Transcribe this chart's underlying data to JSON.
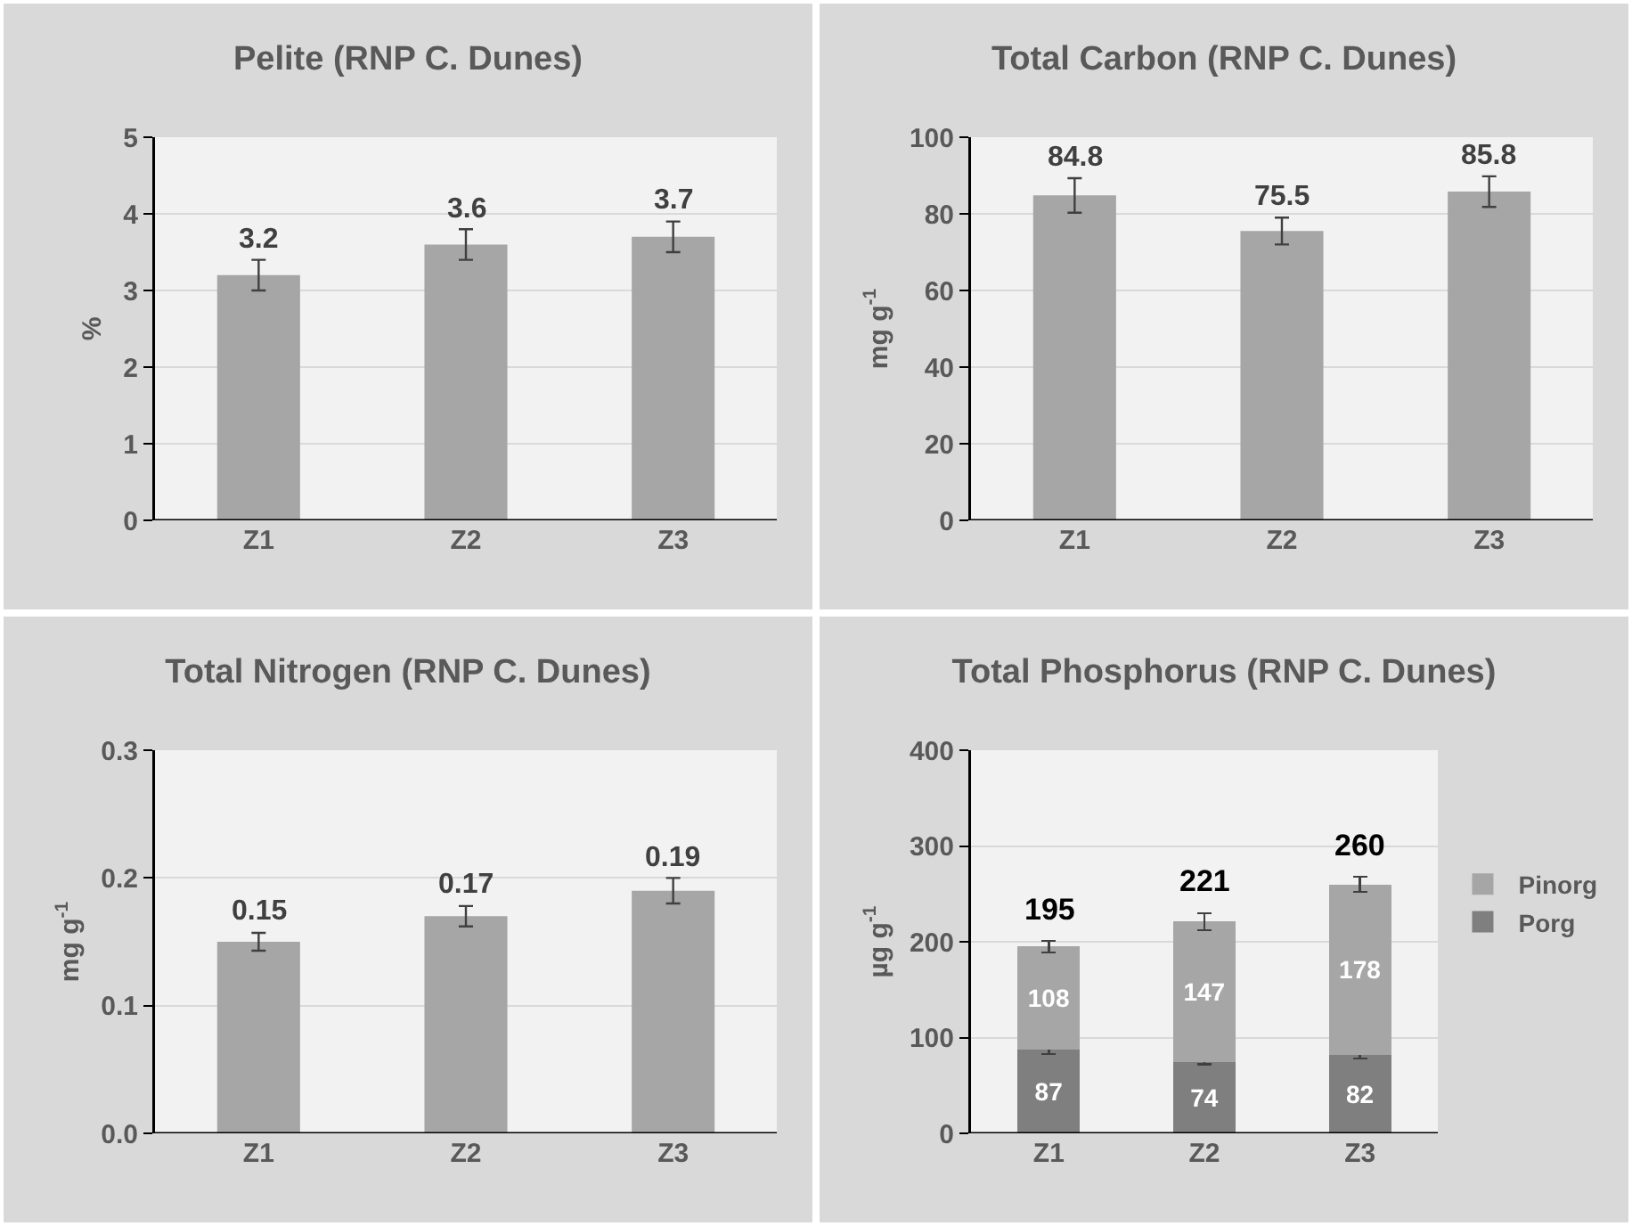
{
  "chart_data": [
    {
      "type": "bar",
      "title": "Pelite (RNP C. Dunes)",
      "ylabel": "%",
      "categories": [
        "Z1",
        "Z2",
        "Z3"
      ],
      "values": [
        3.2,
        3.6,
        3.7
      ],
      "errors": [
        0.2,
        0.2,
        0.2
      ],
      "color": "#a6a6a6",
      "ylim": [
        0,
        5
      ],
      "yticks": [
        0,
        1,
        2,
        3,
        4,
        5
      ],
      "grid": "y",
      "data_labels": true
    },
    {
      "type": "bar",
      "title": "Total Carbon (RNP C. Dunes)",
      "ylabel": "mg g$^{-1}$",
      "categories": [
        "Z1",
        "Z2",
        "Z3"
      ],
      "values": [
        84.8,
        75.5,
        85.8
      ],
      "errors": [
        4.5,
        3.5,
        4
      ],
      "color": "#a6a6a6",
      "ylim": [
        0,
        100
      ],
      "yticks": [
        0,
        20,
        40,
        60,
        80,
        100
      ],
      "grid": "y",
      "data_labels": true
    },
    {
      "type": "bar",
      "title": "Total Nitrogen (RNP C. Dunes)",
      "ylabel": "mg g$^{-1}$",
      "categories": [
        "Z1",
        "Z2",
        "Z3"
      ],
      "values": [
        0.15,
        0.17,
        0.19
      ],
      "errors": [
        0.007,
        0.008,
        0.01
      ],
      "color": "#a6a6a6",
      "ylim": [
        0,
        0.3
      ],
      "yticks": [
        {
          "value": 0,
          "label": "0.0"
        },
        {
          "value": 0.1,
          "label": "0.1"
        },
        {
          "value": 0.2,
          "label": "0.2"
        },
        {
          "value": 0.3,
          "label": "0.3"
        }
      ],
      "grid": "y",
      "data_labels": true
    },
    {
      "type": "bar",
      "stacked": true,
      "title": "Total Phosphorus (RNP C. Dunes)",
      "ylabel": "µg g$^{-1}$",
      "categories": [
        "Z1",
        "Z2",
        "Z3"
      ],
      "series": [
        {
          "name": "Porg",
          "color": "#7f7f7f",
          "values": [
            87,
            74,
            82
          ],
          "errors": [
            4,
            2,
            4
          ]
        },
        {
          "name": "Pinorg",
          "color": "#a6a6a6",
          "values": [
            108,
            147,
            178
          ],
          "errors": [
            6,
            9,
            8
          ]
        }
      ],
      "totals": [
        "195",
        "221",
        "260"
      ],
      "ylim": [
        0,
        400
      ],
      "yticks": [
        0,
        100,
        200,
        300,
        400
      ],
      "grid": "y",
      "data_labels": true,
      "legend": "right"
    }
  ]
}
